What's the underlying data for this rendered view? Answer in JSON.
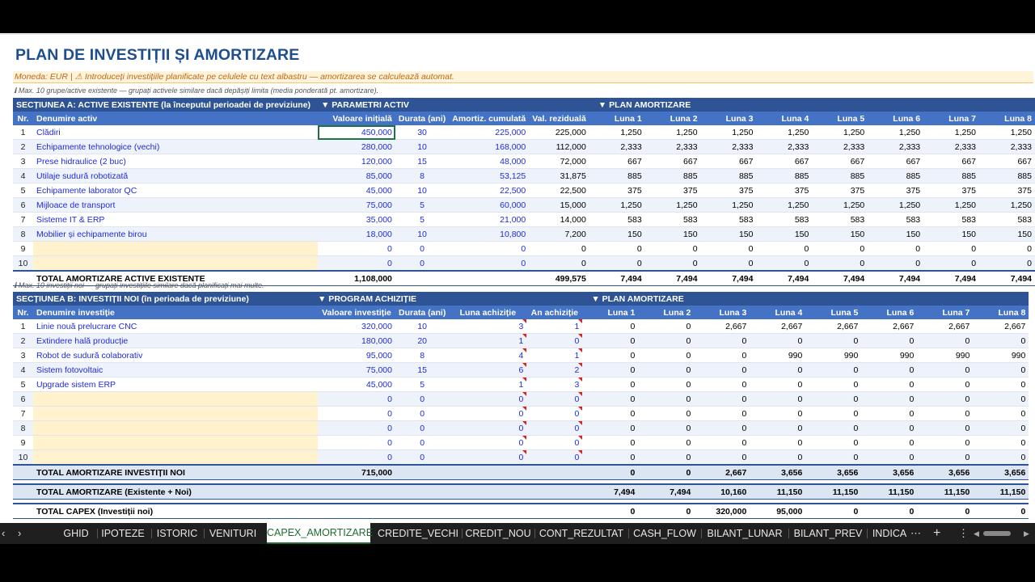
{
  "title": "PLAN DE INVESTIȚII ȘI AMORTIZARE",
  "currency_note": "Moneda: EUR  |  ⚠ Introduceți investițiile planificate pe celulele cu text albastru — amortizarea se calculează automat.",
  "note_a": "ℹ Max. 10 grupe/active existente — grupați activele similare dacă depășiți limita (media ponderată pt. amortizare).",
  "note_b": "ℹ Max. 10 investiții noi — grupați investițiile similare dacă planificați mai multe.",
  "section_a": {
    "header": "SECȚIUNEA A: ACTIVE EXISTENTE (la începutul perioadei de previziune)",
    "param_header": "▼ PARAMETRI ACTIV",
    "plan_header": "▼ PLAN AMORTIZARE",
    "columns": [
      "Nr.",
      "Denumire activ",
      "Valoare inițială",
      "Durata (ani)",
      "Amortiz. cumulată",
      "Val. reziduală",
      "Luna 1",
      "Luna 2",
      "Luna 3",
      "Luna 4",
      "Luna 5",
      "Luna 6",
      "Luna 7",
      "Luna 8"
    ],
    "rows": [
      [
        "1",
        "Clădiri",
        "450,000",
        "30",
        "225,000",
        "225,000",
        "1,250",
        "1,250",
        "1,250",
        "1,250",
        "1,250",
        "1,250",
        "1,250",
        "1,250"
      ],
      [
        "2",
        "Echipamente tehnologice (vechi)",
        "280,000",
        "10",
        "168,000",
        "112,000",
        "2,333",
        "2,333",
        "2,333",
        "2,333",
        "2,333",
        "2,333",
        "2,333",
        "2,333"
      ],
      [
        "3",
        "Prese hidraulice  (2 buc)",
        "120,000",
        "15",
        "48,000",
        "72,000",
        "667",
        "667",
        "667",
        "667",
        "667",
        "667",
        "667",
        "667"
      ],
      [
        "4",
        "Utilaje sudură robotizată",
        "85,000",
        "8",
        "53,125",
        "31,875",
        "885",
        "885",
        "885",
        "885",
        "885",
        "885",
        "885",
        "885"
      ],
      [
        "5",
        "Echipamente laborator QC",
        "45,000",
        "10",
        "22,500",
        "22,500",
        "375",
        "375",
        "375",
        "375",
        "375",
        "375",
        "375",
        "375"
      ],
      [
        "6",
        "Mijloace de transport",
        "75,000",
        "5",
        "60,000",
        "15,000",
        "1,250",
        "1,250",
        "1,250",
        "1,250",
        "1,250",
        "1,250",
        "1,250",
        "1,250"
      ],
      [
        "7",
        "Sisteme IT & ERP",
        "35,000",
        "5",
        "21,000",
        "14,000",
        "583",
        "583",
        "583",
        "583",
        "583",
        "583",
        "583",
        "583"
      ],
      [
        "8",
        "Mobilier și echipamente birou",
        "18,000",
        "10",
        "10,800",
        "7,200",
        "150",
        "150",
        "150",
        "150",
        "150",
        "150",
        "150",
        "150"
      ],
      [
        "9",
        "",
        "0",
        "0",
        "0",
        "0",
        "0",
        "0",
        "0",
        "0",
        "0",
        "0",
        "0",
        "0"
      ],
      [
        "10",
        "",
        "0",
        "0",
        "0",
        "0",
        "0",
        "0",
        "0",
        "0",
        "0",
        "0",
        "0",
        "0"
      ]
    ],
    "total": [
      "TOTAL AMORTIZARE ACTIVE EXISTENTE",
      "1,108,000",
      "",
      "",
      "499,575",
      "7,494",
      "7,494",
      "7,494",
      "7,494",
      "7,494",
      "7,494",
      "7,494",
      "7,494"
    ]
  },
  "section_b": {
    "header": "SECȚIUNEA B: INVESTIȚII NOI (în perioada de previziune)",
    "param_header": "▼ PROGRAM ACHIZIȚIE",
    "plan_header": "▼ PLAN AMORTIZARE",
    "columns": [
      "Nr.",
      "Denumire investiție",
      "Valoare investiție",
      "Durata (ani)",
      "Luna achiziție",
      "An achiziție",
      "Luna 1",
      "Luna 2",
      "Luna 3",
      "Luna 4",
      "Luna 5",
      "Luna 6",
      "Luna 7",
      "Luna 8"
    ],
    "rows": [
      [
        "1",
        "Linie nouă prelucrare CNC",
        "320,000",
        "10",
        "3",
        "1",
        "0",
        "0",
        "2,667",
        "2,667",
        "2,667",
        "2,667",
        "2,667",
        "2,667"
      ],
      [
        "2",
        "Extindere hală producție",
        "180,000",
        "20",
        "1",
        "0",
        "0",
        "0",
        "0",
        "0",
        "0",
        "0",
        "0",
        "0"
      ],
      [
        "3",
        "Robot de sudură colaborativ",
        "95,000",
        "8",
        "4",
        "1",
        "0",
        "0",
        "0",
        "990",
        "990",
        "990",
        "990",
        "990"
      ],
      [
        "4",
        "Sistem fotovoltaic",
        "75,000",
        "15",
        "6",
        "2",
        "0",
        "0",
        "0",
        "0",
        "0",
        "0",
        "0",
        "0"
      ],
      [
        "5",
        "Upgrade sistem ERP",
        "45,000",
        "5",
        "1",
        "3",
        "0",
        "0",
        "0",
        "0",
        "0",
        "0",
        "0",
        "0"
      ],
      [
        "6",
        "",
        "0",
        "0",
        "0",
        "0",
        "0",
        "0",
        "0",
        "0",
        "0",
        "0",
        "0",
        "0"
      ],
      [
        "7",
        "",
        "0",
        "0",
        "0",
        "0",
        "0",
        "0",
        "0",
        "0",
        "0",
        "0",
        "0",
        "0"
      ],
      [
        "8",
        "",
        "0",
        "0",
        "0",
        "0",
        "0",
        "0",
        "0",
        "0",
        "0",
        "0",
        "0",
        "0"
      ],
      [
        "9",
        "",
        "0",
        "0",
        "0",
        "0",
        "0",
        "0",
        "0",
        "0",
        "0",
        "0",
        "0",
        "0"
      ],
      [
        "10",
        "",
        "0",
        "0",
        "0",
        "0",
        "0",
        "0",
        "0",
        "0",
        "0",
        "0",
        "0",
        "0"
      ]
    ],
    "total_new": [
      "TOTAL AMORTIZARE INVESTIȚII NOI",
      "715,000",
      "",
      "",
      "",
      "0",
      "0",
      "2,667",
      "3,656",
      "3,656",
      "3,656",
      "3,656",
      "3,656"
    ],
    "total_all": [
      "TOTAL AMORTIZARE (Existente + Noi)",
      "",
      "",
      "",
      "",
      "7,494",
      "7,494",
      "10,160",
      "11,150",
      "11,150",
      "11,150",
      "11,150",
      "11,150"
    ],
    "total_capex": [
      "TOTAL CAPEX (Investiții noi)",
      "",
      "",
      "",
      "",
      "0",
      "0",
      "320,000",
      "95,000",
      "0",
      "0",
      "0",
      "0"
    ]
  },
  "tabs": {
    "items": [
      "GHID",
      "IPOTEZE",
      "ISTORIC",
      "VENITURI",
      "CAPEX_AMORTIZARE",
      "CREDITE_VECHI",
      "CREDIT_NOU",
      "CONT_REZULTAT",
      "CASH_FLOW",
      "BILANT_LUNAR",
      "BILANT_PREV",
      "INDICA"
    ],
    "active": "CAPEX_AMORTIZARE",
    "more": "⋯",
    "add": "+",
    "menu": "⋮"
  },
  "colors": {
    "section": "#2f5496",
    "header": "#4472c4",
    "input_blue": "#1f2be0",
    "title": "#1f4e8c",
    "active_tab": "#1f6b34"
  }
}
